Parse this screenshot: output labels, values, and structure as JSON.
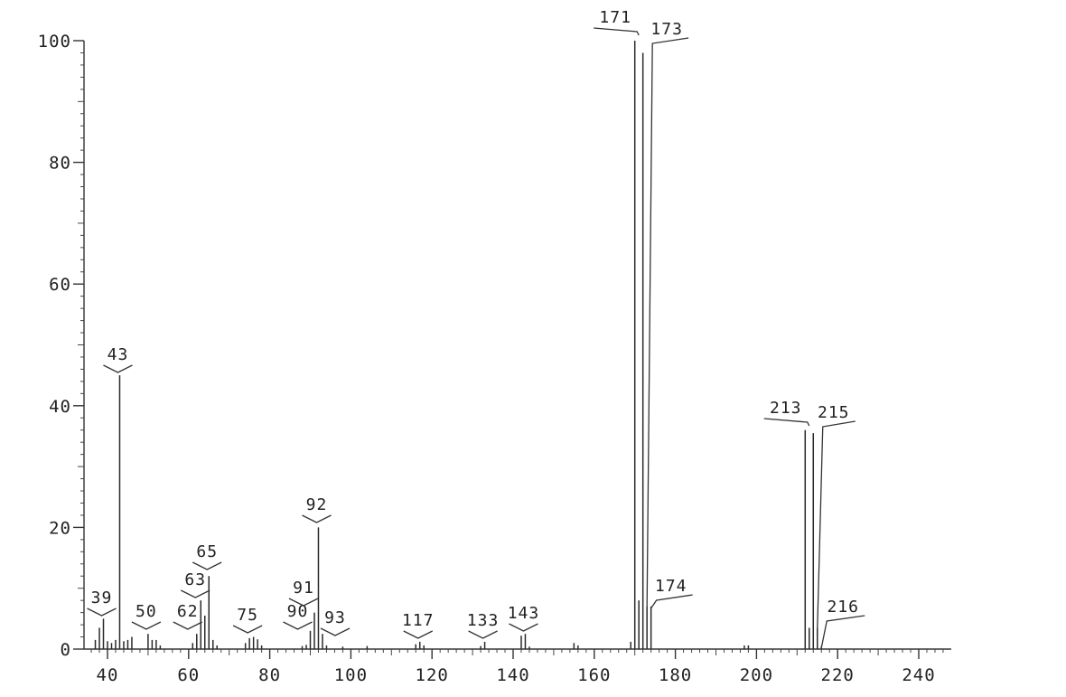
{
  "chart_data": {
    "type": "bar",
    "title": "",
    "xlabel": "",
    "ylabel": "",
    "xlim": [
      35,
      248
    ],
    "ylim": [
      0,
      100
    ],
    "x_ticks": [
      40,
      60,
      80,
      100,
      120,
      140,
      160,
      180,
      200,
      220,
      240
    ],
    "y_ticks": [
      0,
      20,
      40,
      60,
      80,
      100
    ],
    "x_tick_labels": [
      "40",
      "60",
      "80",
      "100",
      "120",
      "140",
      "160",
      "180",
      "200",
      "220",
      "240"
    ],
    "y_tick_labels": [
      "0",
      "20",
      "40",
      "60",
      "80",
      "100"
    ],
    "grid": false,
    "legend": "none",
    "color": "#2a2a2a",
    "series": [
      {
        "x": [
          37,
          38,
          39,
          40,
          41,
          42,
          43,
          44,
          45,
          46,
          50,
          51,
          52,
          53,
          61,
          62,
          63,
          64,
          65,
          66,
          67,
          74,
          75,
          76,
          77,
          78,
          88,
          89,
          90,
          91,
          92,
          93,
          94,
          98,
          104,
          116,
          117,
          118,
          132,
          133,
          142,
          143,
          144,
          155,
          156,
          169,
          170,
          171,
          172,
          173,
          174,
          197,
          198,
          212,
          213,
          214,
          215,
          216
        ],
        "values": [
          1.5,
          3.5,
          5,
          1.3,
          1,
          1.5,
          45,
          1.3,
          1.5,
          2,
          2.5,
          1.5,
          1.5,
          0.6,
          1,
          2.5,
          8,
          5.5,
          12,
          1.5,
          0.6,
          1,
          1.8,
          2,
          1.6,
          0.6,
          0.5,
          0.7,
          3,
          6,
          20,
          2.5,
          0.6,
          0.4,
          0.5,
          0.8,
          1.2,
          0.6,
          0.5,
          1.2,
          2.2,
          2.5,
          0.4,
          1,
          0.6,
          1.2,
          100,
          8,
          98,
          7,
          7,
          0.6,
          0.6,
          36,
          3.5,
          35.5,
          3.5,
          0.5
        ]
      }
    ],
    "annotations": [
      {
        "text": "39",
        "x": 39
      },
      {
        "text": "43",
        "x": 43
      },
      {
        "text": "50",
        "x": 50
      },
      {
        "text": "62",
        "x": 62
      },
      {
        "text": "63",
        "x": 63
      },
      {
        "text": "65",
        "x": 65
      },
      {
        "text": "75",
        "x": 75
      },
      {
        "text": "90",
        "x": 90
      },
      {
        "text": "91",
        "x": 91
      },
      {
        "text": "92",
        "x": 92
      },
      {
        "text": "93",
        "x": 93
      },
      {
        "text": "117",
        "x": 117
      },
      {
        "text": "133",
        "x": 133
      },
      {
        "text": "143",
        "x": 143
      },
      {
        "text": "171",
        "x": 171
      },
      {
        "text": "173",
        "x": 173
      },
      {
        "text": "174",
        "x": 174
      },
      {
        "text": "213",
        "x": 213
      },
      {
        "text": "215",
        "x": 215
      },
      {
        "text": "216",
        "x": 216
      }
    ]
  }
}
